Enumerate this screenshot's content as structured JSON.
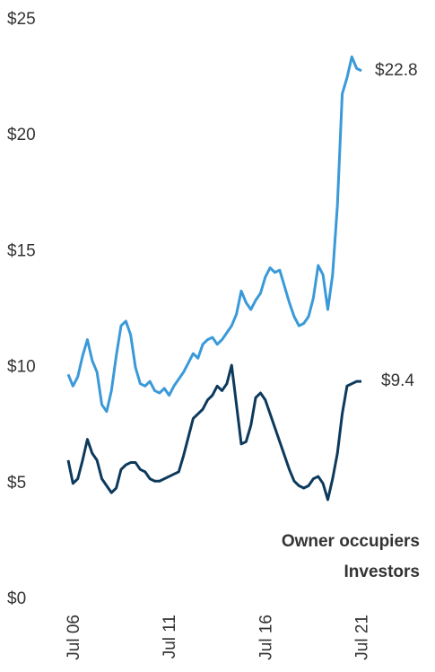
{
  "chart_data": {
    "type": "line",
    "categories": [
      "Jul 06",
      null,
      null,
      null,
      null,
      null,
      null,
      null,
      null,
      null,
      null,
      null,
      null,
      null,
      null,
      null,
      null,
      null,
      null,
      null,
      "Jul 11",
      null,
      null,
      null,
      null,
      null,
      null,
      null,
      null,
      null,
      null,
      null,
      null,
      null,
      null,
      null,
      null,
      null,
      null,
      null,
      "Jul 16",
      null,
      null,
      null,
      null,
      null,
      null,
      null,
      null,
      null,
      null,
      null,
      null,
      null,
      null,
      null,
      null,
      null,
      null,
      null,
      "Jul 21",
      null
    ],
    "series": [
      {
        "name": "Owner occupiers",
        "color": "#3a9ad9",
        "end_label": "$22.8",
        "values": [
          9.7,
          9.2,
          9.6,
          10.5,
          11.2,
          10.3,
          9.8,
          8.4,
          8.1,
          9.0,
          10.5,
          11.8,
          12.0,
          11.4,
          10.0,
          9.3,
          9.2,
          9.4,
          9.0,
          8.9,
          9.1,
          8.8,
          9.2,
          9.5,
          9.8,
          10.2,
          10.6,
          10.4,
          11.0,
          11.2,
          11.3,
          11.0,
          11.2,
          11.5,
          11.8,
          12.3,
          13.3,
          12.8,
          12.5,
          12.9,
          13.2,
          13.9,
          14.3,
          14.1,
          14.2,
          13.5,
          12.8,
          12.2,
          11.8,
          11.9,
          12.2,
          13.0,
          14.4,
          14.0,
          12.5,
          14.0,
          17.0,
          21.8,
          22.5,
          23.4,
          22.9,
          22.8
        ]
      },
      {
        "name": "Investors",
        "color": "#0d3a5c",
        "end_label": "$9.4",
        "values": [
          6.0,
          5.0,
          5.2,
          6.0,
          6.9,
          6.3,
          6.0,
          5.2,
          4.9,
          4.6,
          4.8,
          5.6,
          5.8,
          5.9,
          5.9,
          5.6,
          5.5,
          5.2,
          5.1,
          5.1,
          5.2,
          5.3,
          5.4,
          5.5,
          6.2,
          7.0,
          7.8,
          8.0,
          8.2,
          8.6,
          8.8,
          9.2,
          9.0,
          9.3,
          10.1,
          8.4,
          6.7,
          6.8,
          7.5,
          8.7,
          8.9,
          8.6,
          8.0,
          7.4,
          6.8,
          6.2,
          5.6,
          5.1,
          4.9,
          4.8,
          4.9,
          5.2,
          5.3,
          5.0,
          4.3,
          5.2,
          6.3,
          8.0,
          9.2,
          9.3,
          9.4,
          9.4
        ]
      }
    ],
    "ylim": [
      0,
      25
    ],
    "yticks": [
      {
        "value": 0,
        "label": "$0"
      },
      {
        "value": 5,
        "label": "$5"
      },
      {
        "value": 10,
        "label": "$10"
      },
      {
        "value": 15,
        "label": "$15"
      },
      {
        "value": 20,
        "label": "$20"
      },
      {
        "value": 25,
        "label": "$25"
      }
    ],
    "grid": false,
    "legend": "bottom-right"
  }
}
